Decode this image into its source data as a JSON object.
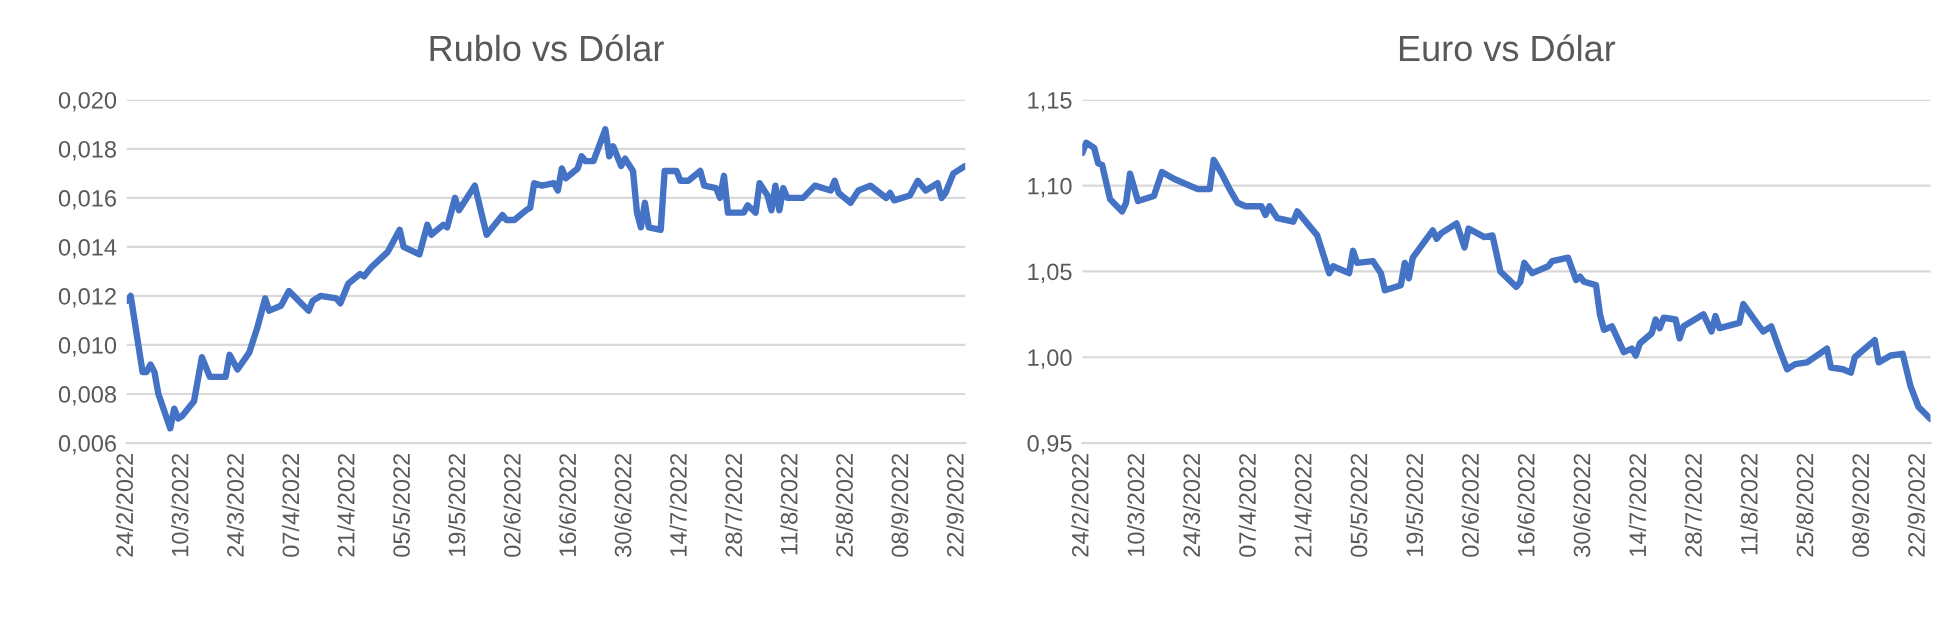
{
  "chart_data": [
    {
      "type": "line",
      "title": "Rublo vs Dólar",
      "color": "#4472c4",
      "grid": "y",
      "legend": false,
      "x": [
        "2022-02-24",
        "2022-02-25",
        "2022-02-28",
        "2022-03-01",
        "2022-03-02",
        "2022-03-03",
        "2022-03-04",
        "2022-03-07",
        "2022-03-08",
        "2022-03-09",
        "2022-03-10",
        "2022-03-13",
        "2022-03-15",
        "2022-03-17",
        "2022-03-21",
        "2022-03-22",
        "2022-03-24",
        "2022-03-27",
        "2022-03-29",
        "2022-03-31",
        "2022-04-01",
        "2022-04-04",
        "2022-04-06",
        "2022-04-11",
        "2022-04-12",
        "2022-04-14",
        "2022-04-18",
        "2022-04-19",
        "2022-04-21",
        "2022-04-24",
        "2022-04-25",
        "2022-04-27",
        "2022-05-01",
        "2022-05-04",
        "2022-05-05",
        "2022-05-09",
        "2022-05-11",
        "2022-05-12",
        "2022-05-15",
        "2022-05-16",
        "2022-05-18",
        "2022-05-19",
        "2022-05-23",
        "2022-05-26",
        "2022-05-30",
        "2022-05-31",
        "2022-06-02",
        "2022-06-05",
        "2022-06-06",
        "2022-06-07",
        "2022-06-09",
        "2022-06-12",
        "2022-06-13",
        "2022-06-14",
        "2022-06-15",
        "2022-06-18",
        "2022-06-19",
        "2022-06-20",
        "2022-06-22",
        "2022-06-25",
        "2022-06-26",
        "2022-06-27",
        "2022-06-29",
        "2022-06-30",
        "2022-07-02",
        "2022-07-03",
        "2022-07-04",
        "2022-07-05",
        "2022-07-06",
        "2022-07-09",
        "2022-07-10",
        "2022-07-13",
        "2022-07-14",
        "2022-07-16",
        "2022-07-19",
        "2022-07-20",
        "2022-07-23",
        "2022-07-24",
        "2022-07-25",
        "2022-07-26",
        "2022-07-30",
        "2022-07-31",
        "2022-08-02",
        "2022-08-03",
        "2022-08-05",
        "2022-08-06",
        "2022-08-07",
        "2022-08-08",
        "2022-08-09",
        "2022-08-10",
        "2022-08-14",
        "2022-08-17",
        "2022-08-21",
        "2022-08-22",
        "2022-08-23",
        "2022-08-26",
        "2022-08-28",
        "2022-08-31",
        "2022-09-04",
        "2022-09-05",
        "2022-09-06",
        "2022-09-10",
        "2022-09-12",
        "2022-09-14",
        "2022-09-17",
        "2022-09-18",
        "2022-09-19",
        "2022-09-21",
        "2022-09-24"
      ],
      "values": [
        0.0118,
        0.012,
        0.0089,
        0.0089,
        0.0092,
        0.0089,
        0.008,
        0.0066,
        0.0074,
        0.007,
        0.0071,
        0.0077,
        0.0095,
        0.0087,
        0.0087,
        0.0096,
        0.009,
        0.0097,
        0.0107,
        0.0119,
        0.0114,
        0.0116,
        0.0122,
        0.0114,
        0.0118,
        0.012,
        0.0119,
        0.0117,
        0.0125,
        0.0129,
        0.0128,
        0.0132,
        0.0138,
        0.0147,
        0.014,
        0.0137,
        0.0149,
        0.0145,
        0.0149,
        0.0148,
        0.016,
        0.0155,
        0.0165,
        0.0145,
        0.0153,
        0.0151,
        0.0151,
        0.0155,
        0.0156,
        0.0166,
        0.0165,
        0.0166,
        0.0163,
        0.0172,
        0.0168,
        0.0172,
        0.0177,
        0.0175,
        0.0175,
        0.0188,
        0.0177,
        0.0181,
        0.0173,
        0.0176,
        0.0171,
        0.0154,
        0.0148,
        0.0158,
        0.0148,
        0.0147,
        0.0171,
        0.0171,
        0.0167,
        0.0167,
        0.0171,
        0.0165,
        0.0164,
        0.016,
        0.0169,
        0.0154,
        0.0154,
        0.0157,
        0.0154,
        0.0166,
        0.0161,
        0.0155,
        0.0165,
        0.0155,
        0.0164,
        0.016,
        0.016,
        0.0165,
        0.0163,
        0.0167,
        0.0162,
        0.0158,
        0.0163,
        0.0165,
        0.016,
        0.0162,
        0.0159,
        0.0161,
        0.0167,
        0.0163,
        0.0166,
        0.016,
        0.0162,
        0.017,
        0.0173
      ],
      "xlim": [
        "2022-02-24",
        "2022-09-24"
      ],
      "xticks": [
        {
          "value": "2022-02-24",
          "label": "24/2/2022"
        },
        {
          "value": "2022-03-10",
          "label": "10/3/2022"
        },
        {
          "value": "2022-03-24",
          "label": "24/3/2022"
        },
        {
          "value": "2022-04-07",
          "label": "07/4/2022"
        },
        {
          "value": "2022-04-21",
          "label": "21/4/2022"
        },
        {
          "value": "2022-05-05",
          "label": "05/5/2022"
        },
        {
          "value": "2022-05-19",
          "label": "19/5/2022"
        },
        {
          "value": "2022-06-02",
          "label": "02/6/2022"
        },
        {
          "value": "2022-06-16",
          "label": "16/6/2022"
        },
        {
          "value": "2022-06-30",
          "label": "30/6/2022"
        },
        {
          "value": "2022-07-14",
          "label": "14/7/2022"
        },
        {
          "value": "2022-07-28",
          "label": "28/7/2022"
        },
        {
          "value": "2022-08-11",
          "label": "11/8/2022"
        },
        {
          "value": "2022-08-25",
          "label": "25/8/2022"
        },
        {
          "value": "2022-09-08",
          "label": "08/9/2022"
        },
        {
          "value": "2022-09-22",
          "label": "22/9/2022"
        }
      ],
      "ylim": [
        0.006,
        0.02
      ],
      "yticks": [
        {
          "value": 0.006,
          "label": "0,006"
        },
        {
          "value": 0.008,
          "label": "0,008"
        },
        {
          "value": 0.01,
          "label": "0,010"
        },
        {
          "value": 0.012,
          "label": "0,012"
        },
        {
          "value": 0.014,
          "label": "0,014"
        },
        {
          "value": 0.016,
          "label": "0,016"
        },
        {
          "value": 0.018,
          "label": "0,018"
        },
        {
          "value": 0.02,
          "label": "0,020"
        }
      ]
    },
    {
      "type": "line",
      "title": "Euro vs Dólar",
      "color": "#4472c4",
      "grid": "y",
      "legend": false,
      "x": [
        "2022-02-24",
        "2022-02-25",
        "2022-02-27",
        "2022-02-28",
        "2022-03-01",
        "2022-03-03",
        "2022-03-06",
        "2022-03-07",
        "2022-03-08",
        "2022-03-10",
        "2022-03-14",
        "2022-03-16",
        "2022-03-19",
        "2022-03-21",
        "2022-03-25",
        "2022-03-28",
        "2022-03-29",
        "2022-03-31",
        "2022-04-02",
        "2022-04-04",
        "2022-04-06",
        "2022-04-10",
        "2022-04-11",
        "2022-04-12",
        "2022-04-14",
        "2022-04-18",
        "2022-04-19",
        "2022-04-24",
        "2022-04-27",
        "2022-04-28",
        "2022-05-02",
        "2022-05-03",
        "2022-05-04",
        "2022-05-08",
        "2022-05-10",
        "2022-05-11",
        "2022-05-15",
        "2022-05-16",
        "2022-05-17",
        "2022-05-18",
        "2022-05-23",
        "2022-05-24",
        "2022-05-25",
        "2022-05-29",
        "2022-05-31",
        "2022-06-01",
        "2022-06-05",
        "2022-06-07",
        "2022-06-09",
        "2022-06-13",
        "2022-06-14",
        "2022-06-15",
        "2022-06-17",
        "2022-06-21",
        "2022-06-22",
        "2022-06-26",
        "2022-06-28",
        "2022-06-29",
        "2022-06-30",
        "2022-07-03",
        "2022-07-04",
        "2022-07-05",
        "2022-07-07",
        "2022-07-10",
        "2022-07-12",
        "2022-07-13",
        "2022-07-14",
        "2022-07-17",
        "2022-07-18",
        "2022-07-19",
        "2022-07-20",
        "2022-07-23",
        "2022-07-24",
        "2022-07-25",
        "2022-07-30",
        "2022-08-01",
        "2022-08-02",
        "2022-08-03",
        "2022-08-08",
        "2022-08-09",
        "2022-08-13",
        "2022-08-14",
        "2022-08-16",
        "2022-08-18",
        "2022-08-20",
        "2022-08-22",
        "2022-08-25",
        "2022-08-30",
        "2022-08-31",
        "2022-09-03",
        "2022-09-05",
        "2022-09-06",
        "2022-09-11",
        "2022-09-12",
        "2022-09-15",
        "2022-09-18",
        "2022-09-20",
        "2022-09-22",
        "2022-09-25"
      ],
      "values": [
        1.119,
        1.125,
        1.122,
        1.113,
        1.112,
        1.092,
        1.085,
        1.09,
        1.107,
        1.091,
        1.094,
        1.108,
        1.104,
        1.102,
        1.098,
        1.098,
        1.115,
        1.107,
        1.098,
        1.09,
        1.088,
        1.088,
        1.083,
        1.088,
        1.081,
        1.079,
        1.085,
        1.071,
        1.049,
        1.053,
        1.049,
        1.062,
        1.055,
        1.056,
        1.049,
        1.039,
        1.042,
        1.055,
        1.046,
        1.058,
        1.074,
        1.069,
        1.072,
        1.078,
        1.064,
        1.075,
        1.07,
        1.071,
        1.05,
        1.041,
        1.044,
        1.055,
        1.049,
        1.053,
        1.056,
        1.058,
        1.045,
        1.047,
        1.044,
        1.042,
        1.025,
        1.016,
        1.018,
        1.003,
        1.005,
        1.001,
        1.008,
        1.014,
        1.022,
        1.017,
        1.023,
        1.022,
        1.011,
        1.018,
        1.025,
        1.015,
        1.024,
        1.017,
        1.02,
        1.031,
        1.018,
        1.015,
        1.018,
        1.005,
        0.993,
        0.996,
        0.997,
        1.005,
        0.994,
        0.993,
        0.991,
        1.0,
        1.01,
        0.997,
        1.001,
        1.002,
        0.983,
        0.971,
        0.964
      ],
      "xlim": [
        "2022-02-24",
        "2022-09-25"
      ],
      "xticks": [
        {
          "value": "2022-02-24",
          "label": "24/2/2022"
        },
        {
          "value": "2022-03-10",
          "label": "10/3/2022"
        },
        {
          "value": "2022-03-24",
          "label": "24/3/2022"
        },
        {
          "value": "2022-04-07",
          "label": "07/4/2022"
        },
        {
          "value": "2022-04-21",
          "label": "21/4/2022"
        },
        {
          "value": "2022-05-05",
          "label": "05/5/2022"
        },
        {
          "value": "2022-05-19",
          "label": "19/5/2022"
        },
        {
          "value": "2022-06-02",
          "label": "02/6/2022"
        },
        {
          "value": "2022-06-16",
          "label": "16/6/2022"
        },
        {
          "value": "2022-06-30",
          "label": "30/6/2022"
        },
        {
          "value": "2022-07-14",
          "label": "14/7/2022"
        },
        {
          "value": "2022-07-28",
          "label": "28/7/2022"
        },
        {
          "value": "2022-08-11",
          "label": "11/8/2022"
        },
        {
          "value": "2022-08-25",
          "label": "25/8/2022"
        },
        {
          "value": "2022-09-08",
          "label": "08/9/2022"
        },
        {
          "value": "2022-09-22",
          "label": "22/9/2022"
        }
      ],
      "ylim": [
        0.95,
        1.15
      ],
      "yticks": [
        {
          "value": 0.95,
          "label": "0,95"
        },
        {
          "value": 1.0,
          "label": "1,00"
        },
        {
          "value": 1.05,
          "label": "1,05"
        },
        {
          "value": 1.1,
          "label": "1,10"
        },
        {
          "value": 1.15,
          "label": "1,15"
        }
      ]
    }
  ]
}
